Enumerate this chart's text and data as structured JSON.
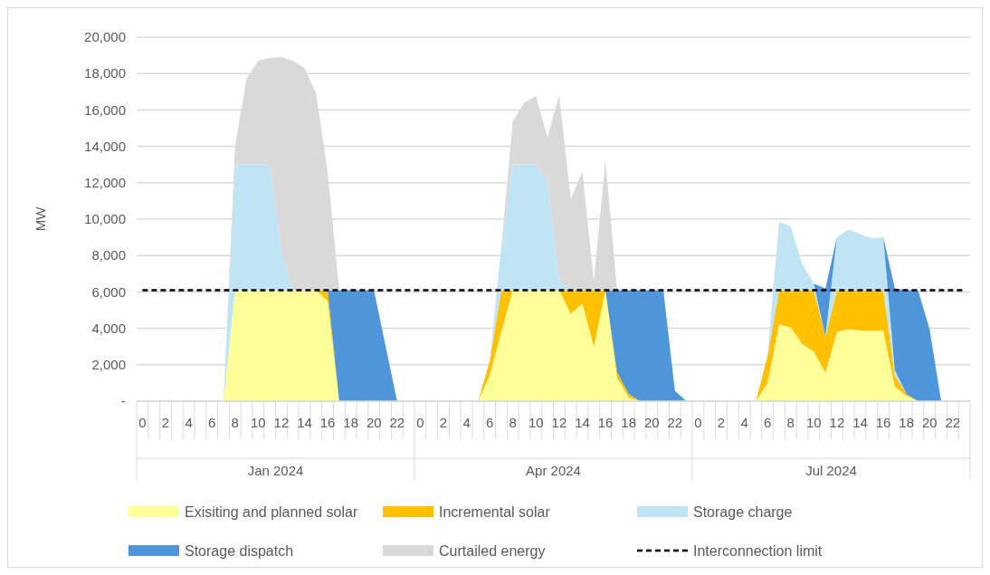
{
  "chart_data": {
    "type": "area",
    "stacked": true,
    "ylabel": "MW",
    "categories": [
      "0",
      null,
      "2",
      null,
      "4",
      null,
      "6",
      null,
      "8",
      null,
      "10",
      null,
      "12",
      null,
      "14",
      null,
      "16",
      null,
      "18",
      null,
      "20",
      null,
      "22",
      null,
      "0",
      null,
      "2",
      null,
      "4",
      null,
      "6",
      null,
      "8",
      null,
      "10",
      null,
      "12",
      null,
      "14",
      null,
      "16",
      null,
      "18",
      null,
      "20",
      null,
      "22",
      null,
      "0",
      null,
      "2",
      null,
      "4",
      null,
      "6",
      null,
      "8",
      null,
      "10",
      null,
      "12",
      null,
      "14",
      null,
      "16",
      null,
      "18",
      null,
      "20",
      null,
      "22",
      null
    ],
    "annotations": [
      "Jan 2024",
      "Apr 2024",
      "Jul 2024"
    ],
    "ylim": [
      0,
      20000
    ],
    "yticks": [
      {
        "value": 0,
        "label": "-"
      },
      {
        "value": 2000,
        "label": "2,000"
      },
      {
        "value": 4000,
        "label": "4,000"
      },
      {
        "value": 6000,
        "label": "6,000"
      },
      {
        "value": 8000,
        "label": "8,000"
      },
      {
        "value": 10000,
        "label": "10,000"
      },
      {
        "value": 12000,
        "label": "12,000"
      },
      {
        "value": 14000,
        "label": "14,000"
      },
      {
        "value": 16000,
        "label": "16,000"
      },
      {
        "value": 18000,
        "label": "18,000"
      },
      {
        "value": 20000,
        "label": "20,000"
      }
    ],
    "grid": "y",
    "legend": "bottom",
    "line_style": "dashed",
    "series": [
      {
        "name": "Exisiting and planned solar",
        "color": "#ffff99",
        "values": [
          null,
          null,
          null,
          null,
          null,
          null,
          null,
          0,
          6100,
          6100,
          6100,
          6100,
          6100,
          6100,
          6100,
          6100,
          5500,
          0,
          null,
          null,
          null,
          null,
          null,
          null,
          null,
          null,
          null,
          null,
          null,
          0,
          1400,
          3800,
          6100,
          6100,
          6100,
          6100,
          6100,
          4800,
          5370,
          2980,
          6100,
          1300,
          200,
          0,
          null,
          null,
          null,
          null,
          null,
          null,
          null,
          null,
          null,
          0,
          980,
          4210,
          4050,
          3130,
          2720,
          1560,
          3800,
          3960,
          3880,
          3850,
          3880,
          800,
          300,
          0,
          null,
          null,
          null,
          null
        ]
      },
      {
        "name": "Incremental solar",
        "color": "#ffc000",
        "values": [
          null,
          null,
          null,
          null,
          null,
          null,
          null,
          null,
          null,
          null,
          null,
          null,
          null,
          null,
          null,
          0,
          600,
          0,
          null,
          null,
          null,
          null,
          null,
          null,
          null,
          null,
          null,
          null,
          null,
          0,
          800,
          2300,
          0,
          null,
          null,
          null,
          0,
          1300,
          730,
          3120,
          0,
          300,
          200,
          0,
          null,
          null,
          null,
          null,
          null,
          null,
          null,
          null,
          null,
          0,
          1490,
          1890,
          2050,
          2970,
          3380,
          1990,
          2300,
          2140,
          2220,
          2250,
          2220,
          600,
          100,
          0,
          null,
          null,
          null,
          null
        ]
      },
      {
        "name": "Storage charge",
        "color": "#c0e4f4",
        "values": [
          null,
          null,
          null,
          null,
          null,
          null,
          null,
          0,
          6900,
          6900,
          6900,
          6900,
          2200,
          0,
          null,
          null,
          null,
          null,
          null,
          null,
          null,
          null,
          null,
          null,
          null,
          null,
          null,
          null,
          null,
          null,
          0,
          2350,
          6900,
          6900,
          6900,
          6000,
          500,
          0,
          null,
          null,
          null,
          null,
          null,
          null,
          null,
          null,
          null,
          null,
          null,
          null,
          null,
          null,
          null,
          null,
          0,
          3750,
          3500,
          1430,
          350,
          0,
          2920,
          3330,
          3080,
          2830,
          2900,
          300,
          0,
          null,
          null,
          null,
          null,
          null
        ]
      },
      {
        "name": "Storage dispatch",
        "color": "#4e95d9",
        "values": [
          null,
          null,
          null,
          null,
          null,
          null,
          null,
          null,
          null,
          null,
          null,
          null,
          null,
          null,
          null,
          null,
          0,
          6100,
          6100,
          6100,
          6100,
          3050,
          0,
          null,
          null,
          null,
          null,
          null,
          null,
          null,
          null,
          null,
          null,
          null,
          null,
          null,
          null,
          null,
          null,
          null,
          0,
          4500,
          5700,
          6100,
          6100,
          6100,
          560,
          0,
          null,
          null,
          null,
          null,
          null,
          null,
          null,
          null,
          null,
          null,
          0,
          2650,
          0,
          null,
          null,
          null,
          0,
          4500,
          5700,
          6100,
          3960,
          0,
          null,
          null
        ]
      },
      {
        "name": "Curtailed energy",
        "color": "#d9d9d9",
        "values": [
          null,
          null,
          null,
          null,
          null,
          null,
          null,
          0,
          1000,
          4730,
          5690,
          5860,
          10600,
          12600,
          12200,
          10800,
          6500,
          0,
          null,
          null,
          null,
          null,
          null,
          null,
          null,
          null,
          null,
          null,
          null,
          null,
          null,
          0,
          2400,
          3400,
          3750,
          2400,
          10200,
          5000,
          6500,
          500,
          7150,
          0,
          null,
          null,
          null,
          null,
          null,
          null,
          null,
          null,
          null,
          null,
          null,
          null,
          null,
          null,
          null,
          null,
          null,
          null,
          null,
          null,
          null,
          null,
          null,
          null,
          null,
          null,
          null,
          null,
          null,
          null
        ]
      },
      {
        "name": "Interconnection limit",
        "type": "line",
        "color": "#000000",
        "values": [
          6100,
          6100,
          6100,
          6100,
          6100,
          6100,
          6100,
          6100,
          6100,
          6100,
          6100,
          6100,
          6100,
          6100,
          6100,
          6100,
          6100,
          6100,
          6100,
          6100,
          6100,
          6100,
          6100,
          6100,
          6100,
          6100,
          6100,
          6100,
          6100,
          6100,
          6100,
          6100,
          6100,
          6100,
          6100,
          6100,
          6100,
          6100,
          6100,
          6100,
          6100,
          6100,
          6100,
          6100,
          6100,
          6100,
          6100,
          6100,
          6100,
          6100,
          6100,
          6100,
          6100,
          6100,
          6100,
          6100,
          6100,
          6100,
          6100,
          6100,
          6100,
          6100,
          6100,
          6100,
          6100,
          6100,
          6100,
          6100,
          6100,
          6100,
          6100,
          6100
        ]
      }
    ]
  }
}
